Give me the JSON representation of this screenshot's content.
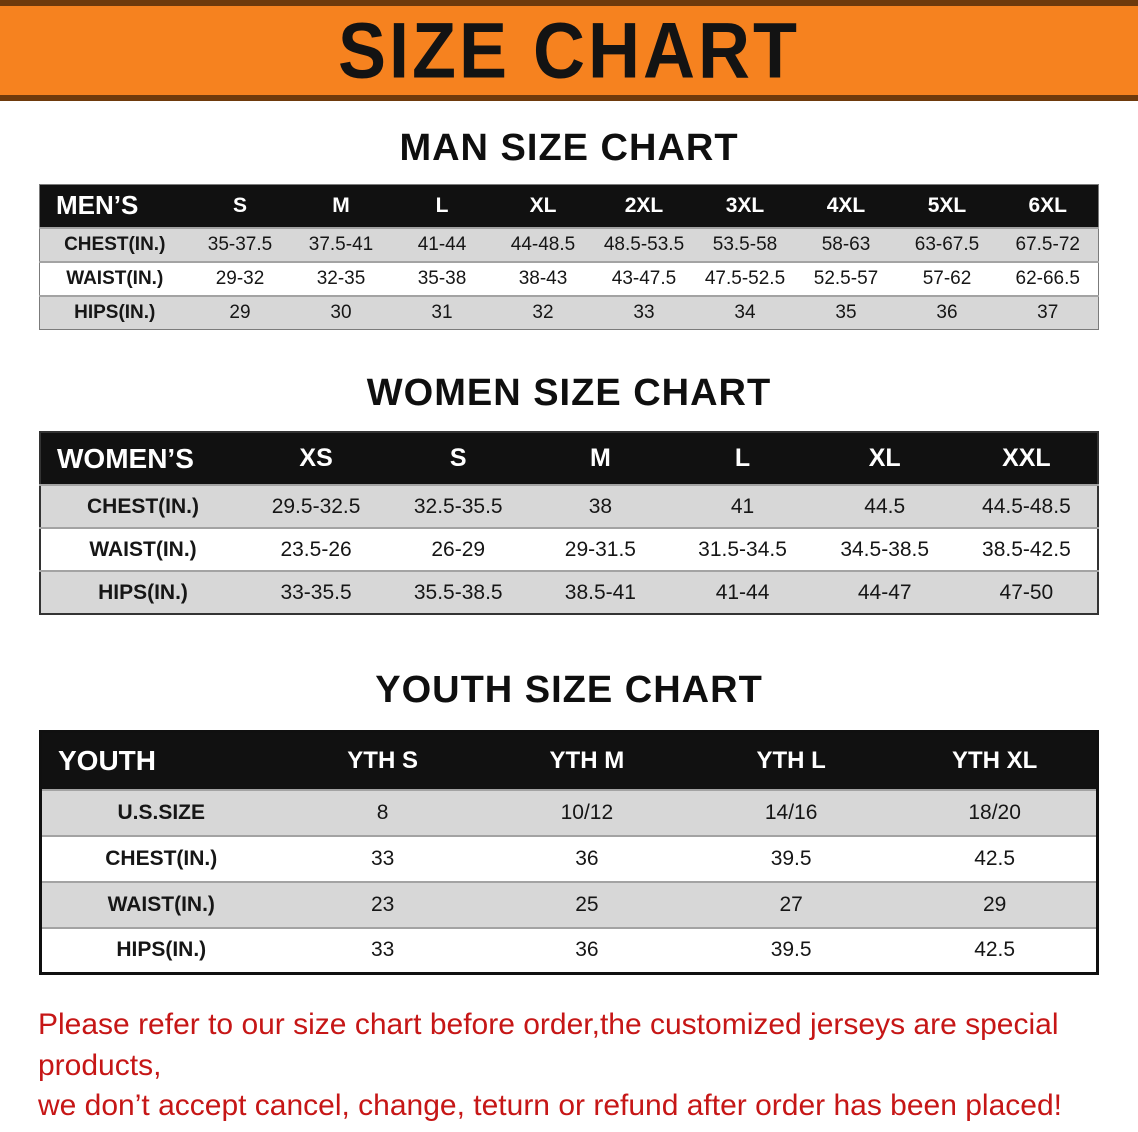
{
  "banner": {
    "title": "SIZE CHART"
  },
  "colors": {
    "banner_bg": "#F6821F",
    "banner_edge": "#6E3A0C",
    "table_header_bg": "#111111",
    "row_shade": "#D7D7D7",
    "footer_text": "#C61616"
  },
  "sections": {
    "men": {
      "title": "MAN SIZE CHART",
      "corner_label": "MEN’S",
      "columns": [
        "S",
        "M",
        "L",
        "XL",
        "2XL",
        "3XL",
        "4XL",
        "5XL",
        "6XL"
      ],
      "rows": [
        {
          "label": "CHEST(IN.)",
          "values": [
            "35-37.5",
            "37.5-41",
            "41-44",
            "44-48.5",
            "48.5-53.5",
            "53.5-58",
            "58-63",
            "63-67.5",
            "67.5-72"
          ]
        },
        {
          "label": "WAIST(IN.)",
          "values": [
            "29-32",
            "32-35",
            "35-38",
            "38-43",
            "43-47.5",
            "47.5-52.5",
            "52.5-57",
            "57-62",
            "62-66.5"
          ]
        },
        {
          "label": "HIPS(IN.)",
          "values": [
            "29",
            "30",
            "31",
            "32",
            "33",
            "34",
            "35",
            "36",
            "37"
          ]
        }
      ]
    },
    "women": {
      "title": "WOMEN SIZE CHART",
      "corner_label": "WOMEN’S",
      "columns": [
        "XS",
        "S",
        "M",
        "L",
        "XL",
        "XXL"
      ],
      "rows": [
        {
          "label": "CHEST(IN.)",
          "values": [
            "29.5-32.5",
            "32.5-35.5",
            "38",
            "41",
            "44.5",
            "44.5-48.5"
          ]
        },
        {
          "label": "WAIST(IN.)",
          "values": [
            "23.5-26",
            "26-29",
            "29-31.5",
            "31.5-34.5",
            "34.5-38.5",
            "38.5-42.5"
          ]
        },
        {
          "label": "HIPS(IN.)",
          "values": [
            "33-35.5",
            "35.5-38.5",
            "38.5-41",
            "41-44",
            "44-47",
            "47-50"
          ]
        }
      ]
    },
    "youth": {
      "title": "YOUTH SIZE CHART",
      "corner_label": "YOUTH",
      "columns": [
        "YTH S",
        "YTH M",
        "YTH L",
        "YTH XL"
      ],
      "rows": [
        {
          "label": "U.S.SIZE",
          "values": [
            "8",
            "10/12",
            "14/16",
            "18/20"
          ]
        },
        {
          "label": "CHEST(IN.)",
          "values": [
            "33",
            "36",
            "39.5",
            "42.5"
          ]
        },
        {
          "label": "WAIST(IN.)",
          "values": [
            "23",
            "25",
            "27",
            "29"
          ]
        },
        {
          "label": "HIPS(IN.)",
          "values": [
            "33",
            "36",
            "39.5",
            "42.5"
          ]
        }
      ]
    }
  },
  "footer": {
    "line1": "Please refer to our size chart before order,the customized jerseys are special products,",
    "line2": "we don’t accept cancel, change, teturn or refund after order has been placed!"
  }
}
